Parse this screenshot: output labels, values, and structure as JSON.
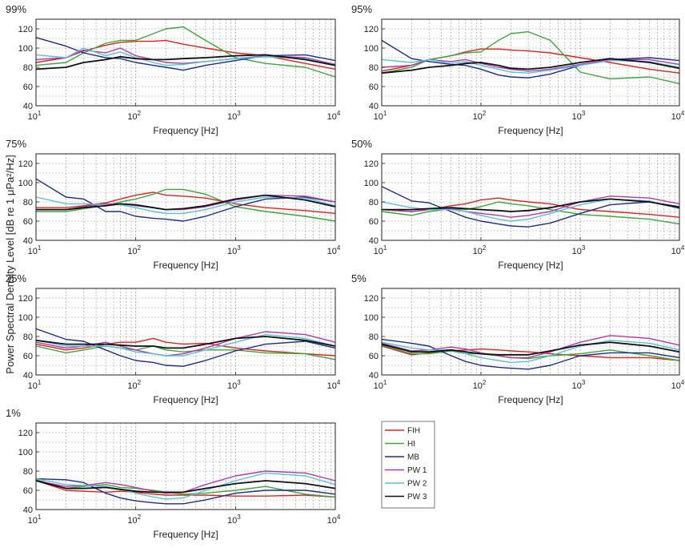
{
  "figure": {
    "ylabel": "Power Spectral Density Level [dB re 1 μPa²/Hz]",
    "xlabel": "Frequency [Hz]"
  },
  "legend": {
    "entries": [
      {
        "name": "FIH",
        "color": "#e8211d"
      },
      {
        "name": "HI",
        "color": "#3aa935"
      },
      {
        "name": "MB",
        "color": "#1c2d8f"
      },
      {
        "name": "PW 1",
        "color": "#b637b4"
      },
      {
        "name": "PW 2",
        "color": "#55c3d6"
      },
      {
        "name": "PW 3",
        "color": "#111111"
      }
    ]
  },
  "chart_data": [
    {
      "type": "line",
      "title": "99%",
      "xlabel": "Frequency [Hz]",
      "xscale": "log",
      "xlim": [
        10,
        10000
      ],
      "ylim": [
        40,
        130
      ],
      "yticks": [
        40,
        60,
        80,
        100,
        120
      ],
      "x": [
        10,
        20,
        30,
        50,
        70,
        100,
        150,
        200,
        300,
        500,
        1000,
        2000,
        5000,
        10000
      ],
      "series": [
        {
          "name": "FIH",
          "values": [
            85,
            90,
            97,
            103,
            106,
            107,
            107,
            108,
            104,
            100,
            95,
            92,
            84,
            78
          ]
        },
        {
          "name": "HI",
          "values": [
            82,
            85,
            95,
            105,
            108,
            108,
            115,
            120,
            122,
            108,
            90,
            84,
            80,
            70
          ]
        },
        {
          "name": "MB",
          "values": [
            111,
            102,
            95,
            90,
            89,
            85,
            82,
            80,
            77,
            82,
            87,
            92,
            93,
            87
          ]
        },
        {
          "name": "PW 1",
          "values": [
            88,
            90,
            98,
            95,
            100,
            92,
            88,
            85,
            84,
            86,
            89,
            92,
            90,
            83
          ]
        },
        {
          "name": "PW 2",
          "values": [
            93,
            90,
            100,
            92,
            96,
            90,
            85,
            82,
            83,
            86,
            89,
            91,
            89,
            82
          ]
        },
        {
          "name": "PW 3",
          "values": [
            78,
            80,
            85,
            88,
            91,
            89,
            88,
            88,
            89,
            90,
            92,
            93,
            88,
            82
          ]
        }
      ]
    },
    {
      "type": "line",
      "title": "95%",
      "xlabel": "Frequency [Hz]",
      "xscale": "log",
      "xlim": [
        10,
        10000
      ],
      "ylim": [
        40,
        130
      ],
      "yticks": [
        40,
        60,
        80,
        100,
        120
      ],
      "x": [
        10,
        20,
        30,
        50,
        70,
        100,
        150,
        200,
        300,
        500,
        1000,
        2000,
        5000,
        10000
      ],
      "series": [
        {
          "name": "FIH",
          "values": [
            76,
            82,
            88,
            92,
            96,
            99,
            99,
            98,
            97,
            95,
            90,
            85,
            78,
            74
          ]
        },
        {
          "name": "HI",
          "values": [
            74,
            80,
            88,
            92,
            95,
            96,
            108,
            115,
            117,
            108,
            75,
            68,
            70,
            63
          ]
        },
        {
          "name": "MB",
          "values": [
            108,
            89,
            86,
            83,
            82,
            78,
            72,
            70,
            69,
            73,
            82,
            88,
            90,
            87
          ]
        },
        {
          "name": "PW 1",
          "values": [
            80,
            82,
            88,
            86,
            88,
            84,
            80,
            78,
            76,
            78,
            83,
            88,
            88,
            83
          ]
        },
        {
          "name": "PW 2",
          "values": [
            88,
            85,
            88,
            84,
            86,
            82,
            78,
            75,
            74,
            77,
            82,
            87,
            86,
            80
          ]
        },
        {
          "name": "PW 3",
          "values": [
            74,
            77,
            80,
            82,
            84,
            85,
            82,
            79,
            78,
            80,
            85,
            89,
            85,
            79
          ]
        }
      ]
    },
    {
      "type": "line",
      "title": "75%",
      "xlabel": "Frequency [Hz]",
      "xscale": "log",
      "xlim": [
        10,
        10000
      ],
      "ylim": [
        40,
        130
      ],
      "yticks": [
        40,
        60,
        80,
        100,
        120
      ],
      "x": [
        10,
        20,
        30,
        50,
        70,
        100,
        150,
        200,
        300,
        500,
        1000,
        2000,
        5000,
        10000
      ],
      "series": [
        {
          "name": "FIH",
          "values": [
            74,
            74,
            76,
            79,
            83,
            87,
            90,
            87,
            86,
            84,
            78,
            74,
            71,
            68
          ]
        },
        {
          "name": "HI",
          "values": [
            70,
            70,
            73,
            76,
            80,
            83,
            88,
            93,
            93,
            88,
            75,
            70,
            65,
            60
          ]
        },
        {
          "name": "MB",
          "values": [
            104,
            85,
            83,
            70,
            70,
            65,
            63,
            62,
            60,
            65,
            75,
            83,
            85,
            80
          ]
        },
        {
          "name": "PW 1",
          "values": [
            72,
            72,
            75,
            78,
            78,
            76,
            74,
            72,
            72,
            75,
            82,
            87,
            86,
            80
          ]
        },
        {
          "name": "PW 2",
          "values": [
            85,
            78,
            78,
            77,
            77,
            74,
            70,
            68,
            68,
            72,
            80,
            85,
            84,
            76
          ]
        },
        {
          "name": "PW 3",
          "values": [
            72,
            72,
            74,
            76,
            78,
            77,
            74,
            72,
            73,
            76,
            83,
            87,
            82,
            75
          ]
        }
      ]
    },
    {
      "type": "line",
      "title": "50%",
      "xlabel": "Frequency [Hz]",
      "xscale": "log",
      "xlim": [
        10,
        10000
      ],
      "ylim": [
        40,
        130
      ],
      "yticks": [
        40,
        60,
        80,
        100,
        120
      ],
      "x": [
        10,
        20,
        30,
        50,
        70,
        100,
        150,
        200,
        300,
        500,
        1000,
        2000,
        5000,
        10000
      ],
      "series": [
        {
          "name": "FIH",
          "values": [
            72,
            70,
            72,
            76,
            78,
            82,
            84,
            82,
            80,
            78,
            72,
            70,
            67,
            64
          ]
        },
        {
          "name": "HI",
          "values": [
            70,
            66,
            70,
            73,
            72,
            75,
            80,
            78,
            76,
            72,
            67,
            65,
            62,
            57
          ]
        },
        {
          "name": "MB",
          "values": [
            96,
            81,
            79,
            70,
            64,
            60,
            57,
            55,
            54,
            58,
            68,
            77,
            80,
            75
          ]
        },
        {
          "name": "PW 1",
          "values": [
            72,
            70,
            72,
            73,
            70,
            68,
            66,
            64,
            66,
            70,
            80,
            86,
            84,
            78
          ]
        },
        {
          "name": "PW 2",
          "values": [
            80,
            74,
            72,
            72,
            70,
            66,
            62,
            60,
            62,
            68,
            77,
            83,
            81,
            73
          ]
        },
        {
          "name": "PW 3",
          "values": [
            72,
            72,
            73,
            74,
            73,
            72,
            71,
            70,
            71,
            74,
            80,
            83,
            80,
            74
          ]
        }
      ]
    },
    {
      "type": "line",
      "title": "25%",
      "xlabel": "Frequency [Hz]",
      "xscale": "log",
      "xlim": [
        10,
        10000
      ],
      "ylim": [
        40,
        130
      ],
      "yticks": [
        40,
        60,
        80,
        100,
        120
      ],
      "x": [
        10,
        20,
        30,
        50,
        70,
        100,
        150,
        200,
        300,
        500,
        1000,
        2000,
        5000,
        10000
      ],
      "series": [
        {
          "name": "FIH",
          "values": [
            72,
            66,
            68,
            72,
            74,
            74,
            78,
            74,
            72,
            73,
            68,
            65,
            62,
            60
          ]
        },
        {
          "name": "HI",
          "values": [
            70,
            63,
            66,
            70,
            68,
            66,
            70,
            66,
            64,
            66,
            66,
            63,
            62,
            56
          ]
        },
        {
          "name": "MB",
          "values": [
            88,
            77,
            75,
            66,
            60,
            55,
            53,
            50,
            49,
            55,
            65,
            72,
            75,
            68
          ]
        },
        {
          "name": "PW 1",
          "values": [
            74,
            68,
            70,
            74,
            70,
            66,
            62,
            60,
            62,
            68,
            78,
            85,
            82,
            74
          ]
        },
        {
          "name": "PW 2",
          "values": [
            76,
            70,
            70,
            70,
            68,
            64,
            62,
            60,
            60,
            66,
            74,
            82,
            78,
            70
          ]
        },
        {
          "name": "PW 3",
          "values": [
            76,
            72,
            72,
            72,
            71,
            70,
            70,
            68,
            68,
            72,
            78,
            80,
            76,
            70
          ]
        }
      ]
    },
    {
      "type": "line",
      "title": "5%",
      "xlabel": "Frequency [Hz]",
      "xscale": "log",
      "xlim": [
        10,
        10000
      ],
      "ylim": [
        40,
        130
      ],
      "yticks": [
        40,
        60,
        80,
        100,
        120
      ],
      "x": [
        10,
        20,
        30,
        50,
        70,
        100,
        150,
        200,
        300,
        500,
        1000,
        2000,
        5000,
        10000
      ],
      "series": [
        {
          "name": "FIH",
          "values": [
            70,
            61,
            63,
            65,
            66,
            67,
            66,
            65,
            64,
            62,
            60,
            58,
            58,
            55
          ]
        },
        {
          "name": "HI",
          "values": [
            71,
            62,
            62,
            65,
            62,
            62,
            60,
            58,
            57,
            60,
            62,
            66,
            60,
            55
          ]
        },
        {
          "name": "MB",
          "values": [
            77,
            73,
            70,
            60,
            54,
            50,
            48,
            47,
            46,
            50,
            60,
            63,
            63,
            58
          ]
        },
        {
          "name": "PW 1",
          "values": [
            73,
            65,
            66,
            69,
            67,
            63,
            60,
            58,
            58,
            64,
            74,
            81,
            78,
            71
          ]
        },
        {
          "name": "PW 2",
          "values": [
            74,
            68,
            66,
            66,
            62,
            58,
            55,
            53,
            54,
            60,
            70,
            76,
            73,
            66
          ]
        },
        {
          "name": "PW 3",
          "values": [
            72,
            64,
            64,
            66,
            64,
            62,
            61,
            61,
            61,
            65,
            71,
            74,
            70,
            64
          ]
        }
      ]
    },
    {
      "type": "line",
      "title": "1%",
      "xlabel": "Frequency [Hz]",
      "xscale": "log",
      "xlim": [
        10,
        10000
      ],
      "ylim": [
        40,
        130
      ],
      "yticks": [
        40,
        60,
        80,
        100,
        120
      ],
      "x": [
        10,
        20,
        30,
        50,
        70,
        100,
        150,
        200,
        300,
        500,
        1000,
        2000,
        5000,
        10000
      ],
      "series": [
        {
          "name": "FIH",
          "values": [
            70,
            60,
            59,
            58,
            59,
            58,
            56,
            55,
            55,
            55,
            54,
            54,
            55,
            53
          ]
        },
        {
          "name": "HI",
          "values": [
            71,
            62,
            64,
            66,
            63,
            62,
            60,
            58,
            56,
            57,
            60,
            64,
            56,
            53
          ]
        },
        {
          "name": "MB",
          "values": [
            72,
            71,
            68,
            57,
            52,
            49,
            47,
            46,
            46,
            50,
            57,
            60,
            60,
            56
          ]
        },
        {
          "name": "PW 1",
          "values": [
            70,
            64,
            65,
            68,
            66,
            63,
            59,
            57,
            58,
            66,
            75,
            80,
            78,
            70
          ]
        },
        {
          "name": "PW 2",
          "values": [
            72,
            66,
            65,
            64,
            61,
            57,
            53,
            51,
            52,
            60,
            70,
            78,
            75,
            66
          ]
        },
        {
          "name": "PW 3",
          "values": [
            70,
            62,
            62,
            63,
            61,
            59,
            58,
            58,
            58,
            62,
            67,
            70,
            67,
            62
          ]
        }
      ]
    }
  ]
}
